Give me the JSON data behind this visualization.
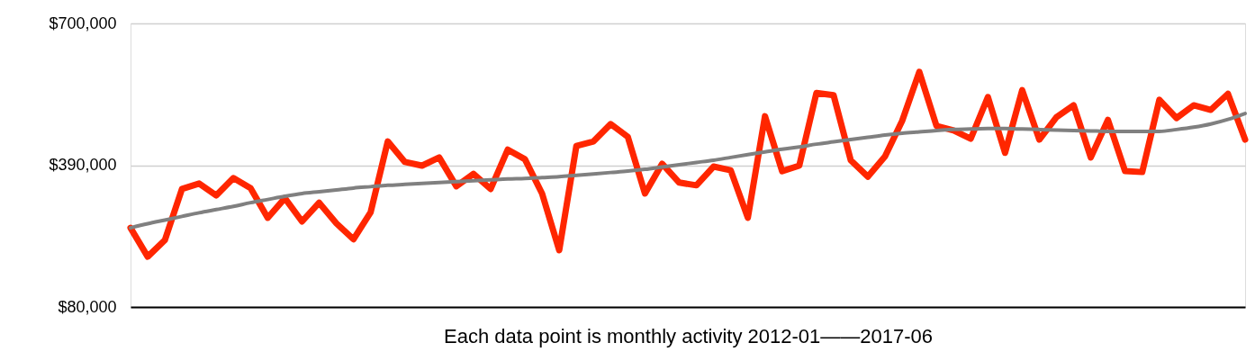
{
  "chart_data": {
    "type": "line",
    "xlabel": "Each data point is monthly activity 2012-01——2017-06",
    "categories": [
      null,
      null,
      null,
      null,
      null,
      null,
      null,
      null,
      null,
      null,
      null,
      null,
      null,
      null,
      null,
      null,
      null,
      null,
      null,
      null,
      null,
      null,
      null,
      null,
      null,
      null,
      null,
      null,
      null,
      null,
      null,
      null,
      null,
      null,
      null,
      null,
      null,
      null,
      null,
      null,
      null,
      null,
      null,
      null,
      null,
      null,
      null,
      null,
      null,
      null,
      null,
      null,
      null,
      null,
      null,
      null,
      null,
      null,
      null,
      null,
      null,
      null,
      null,
      null,
      null,
      null
    ],
    "series": [
      {
        "color": "#ff2600",
        "values": [
          253000,
          190000,
          226000,
          338000,
          350000,
          324000,
          362000,
          340000,
          275000,
          318000,
          267000,
          308000,
          263000,
          228000,
          287000,
          442000,
          397000,
          389000,
          407000,
          344000,
          371000,
          338000,
          424000,
          403000,
          328000,
          204000,
          432000,
          442000,
          480000,
          452000,
          328000,
          393000,
          352000,
          346000,
          387000,
          379000,
          275000,
          497000,
          377000,
          389000,
          548000,
          543000,
          401000,
          365000,
          409000,
          487000,
          594000,
          476000,
          466000,
          448000,
          539000,
          417000,
          554000,
          446000,
          495000,
          521000,
          407000,
          489000,
          377000,
          375000,
          533000,
          493000,
          521000,
          511000,
          546000,
          446000
        ]
      },
      {
        "type": "line",
        "color": "#808080",
        "values": [
          253000,
          262000,
          270000,
          278000,
          286000,
          293000,
          300000,
          308000,
          315000,
          322000,
          328000,
          332000,
          336000,
          340000,
          343000,
          346000,
          348000,
          350000,
          352000,
          354000,
          356000,
          358000,
          360000,
          361000,
          363000,
          365000,
          368000,
          371000,
          374000,
          377000,
          381000,
          386000,
          391000,
          396000,
          401000,
          407000,
          413000,
          419000,
          425000,
          430000,
          436000,
          441000,
          446000,
          451000,
          456000,
          460000,
          463000,
          466000,
          468000,
          469000,
          470000,
          470000,
          469000,
          468000,
          467000,
          466000,
          465000,
          464000,
          464000,
          464000,
          464000,
          468000,
          473000,
          480000,
          490000,
          503000
        ]
      }
    ],
    "ylim": [
      80000,
      700000
    ],
    "yticks": [
      {
        "value": 80000,
        "label": "$80,000"
      },
      {
        "value": 390000,
        "label": "$390,000"
      },
      {
        "value": 700000,
        "label": "$700,000"
      }
    ],
    "grid": "y",
    "tick_labels": "y"
  }
}
